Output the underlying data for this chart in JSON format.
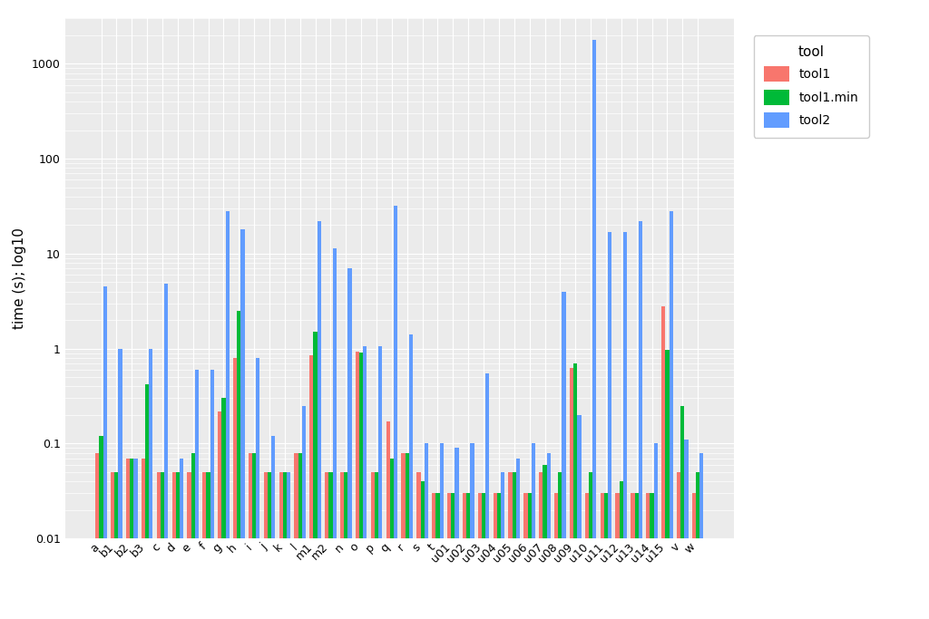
{
  "categories": [
    "a",
    "b1",
    "b2",
    "b3",
    "c",
    "d",
    "e",
    "f",
    "g",
    "h",
    "i",
    "j",
    "k",
    "l",
    "m1",
    "m2",
    "n",
    "o",
    "p",
    "q",
    "r",
    "s",
    "t",
    "u01",
    "u02",
    "u03",
    "u04",
    "u05",
    "u06",
    "u07",
    "u08",
    "u09",
    "u10",
    "u11",
    "u12",
    "u13",
    "u14",
    "u15",
    "v",
    "w"
  ],
  "tool1": [
    0.08,
    0.05,
    0.07,
    0.07,
    0.05,
    0.05,
    0.05,
    0.05,
    0.22,
    0.8,
    0.08,
    0.05,
    0.05,
    0.08,
    0.85,
    0.05,
    0.05,
    0.93,
    0.05,
    0.17,
    0.08,
    0.05,
    0.03,
    0.03,
    0.03,
    0.03,
    0.03,
    0.05,
    0.03,
    0.05,
    0.03,
    0.62,
    0.03,
    0.03,
    0.03,
    0.03,
    0.03,
    2.8,
    0.05,
    0.03
  ],
  "tool1_min": [
    0.12,
    0.05,
    0.07,
    0.42,
    0.05,
    0.05,
    0.08,
    0.05,
    0.3,
    2.5,
    0.08,
    0.05,
    0.05,
    0.08,
    1.5,
    0.05,
    0.05,
    0.92,
    0.05,
    0.07,
    0.08,
    0.04,
    0.03,
    0.03,
    0.03,
    0.03,
    0.03,
    0.05,
    0.03,
    0.06,
    0.05,
    0.7,
    0.05,
    0.03,
    0.04,
    0.03,
    0.03,
    0.97,
    0.25,
    0.05
  ],
  "tool2": [
    4.5,
    1.0,
    0.07,
    1.0,
    4.8,
    0.07,
    0.6,
    0.6,
    28.0,
    18.0,
    0.8,
    0.12,
    0.05,
    0.25,
    22.0,
    11.5,
    7.0,
    1.05,
    1.05,
    32.0,
    1.4,
    0.1,
    0.1,
    0.09,
    0.1,
    0.55,
    0.05,
    0.07,
    0.1,
    0.08,
    4.0,
    0.2,
    1800.0,
    17.0,
    17.0,
    22.0,
    0.1,
    28.0,
    0.11,
    0.08
  ],
  "tool1_color": "#F8766D",
  "tool1min_color": "#00BA38",
  "tool2_color": "#619CFF",
  "ylabel": "time (s); log10",
  "ylim_min": 0.01,
  "ylim_max": 3000,
  "bg_color": "#EBEBEB",
  "grid_color": "#FFFFFF",
  "legend_title": "tool",
  "legend_labels": [
    "tool1",
    "tool1.min",
    "tool2"
  ]
}
